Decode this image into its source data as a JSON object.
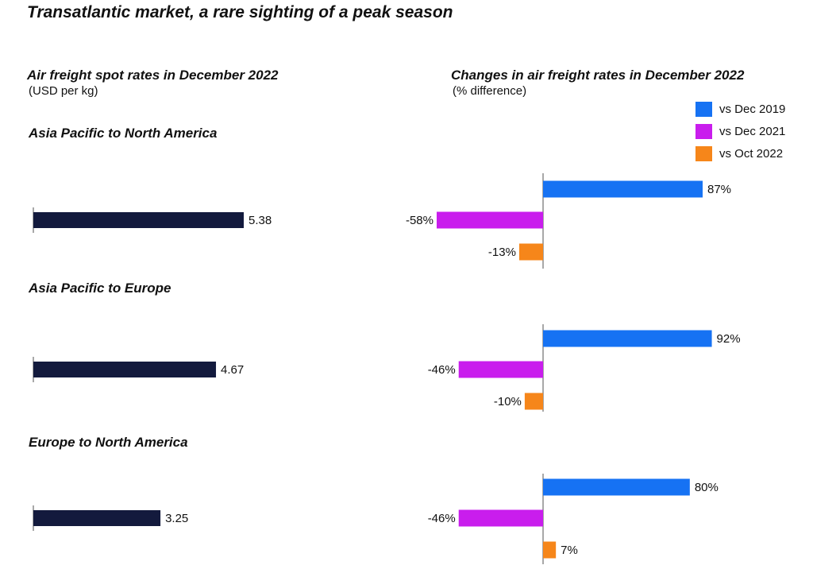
{
  "title": "Transatlantic market, a rare sighting of a peak season",
  "left_panel": {
    "title": "Air freight spot rates in December 2022",
    "subtitle": "(USD per kg)"
  },
  "right_panel": {
    "title": "Changes in air freight rates in December 2022",
    "subtitle": "(% difference)"
  },
  "colors": {
    "spot": "#131a3d",
    "vs_dec_2019": "#1672f3",
    "vs_dec_2021": "#c91ded",
    "vs_oct_2022": "#f6861a"
  },
  "chart_data": [
    {
      "type": "bar",
      "orientation": "horizontal",
      "title": "Air freight spot rates in December 2022",
      "unit": "(USD per kg)",
      "categories": [
        "Asia Pacific to North America",
        "Asia Pacific to Europe",
        "Europe to North America"
      ],
      "values": [
        5.38,
        4.67,
        3.25
      ],
      "value_labels": [
        "5.38",
        "4.67",
        "3.25"
      ]
    },
    {
      "type": "bar",
      "orientation": "horizontal",
      "title": "Changes in air freight rates in December 2022",
      "unit": "(% difference)",
      "categories": [
        "Asia Pacific to North America",
        "Asia Pacific to Europe",
        "Europe to North America"
      ],
      "legend_position": "top-right",
      "series": [
        {
          "name": "vs Dec 2019",
          "values": [
            87,
            92,
            80
          ],
          "labels": [
            "87%",
            "92%",
            "80%"
          ]
        },
        {
          "name": "vs Dec 2021",
          "values": [
            -58,
            -46,
            -46
          ],
          "labels": [
            "-58%",
            "-46%",
            "-46%"
          ]
        },
        {
          "name": "vs Oct 2022",
          "values": [
            -13,
            -10,
            7
          ],
          "labels": [
            "-13%",
            "-10%",
            "7%"
          ]
        }
      ]
    }
  ]
}
